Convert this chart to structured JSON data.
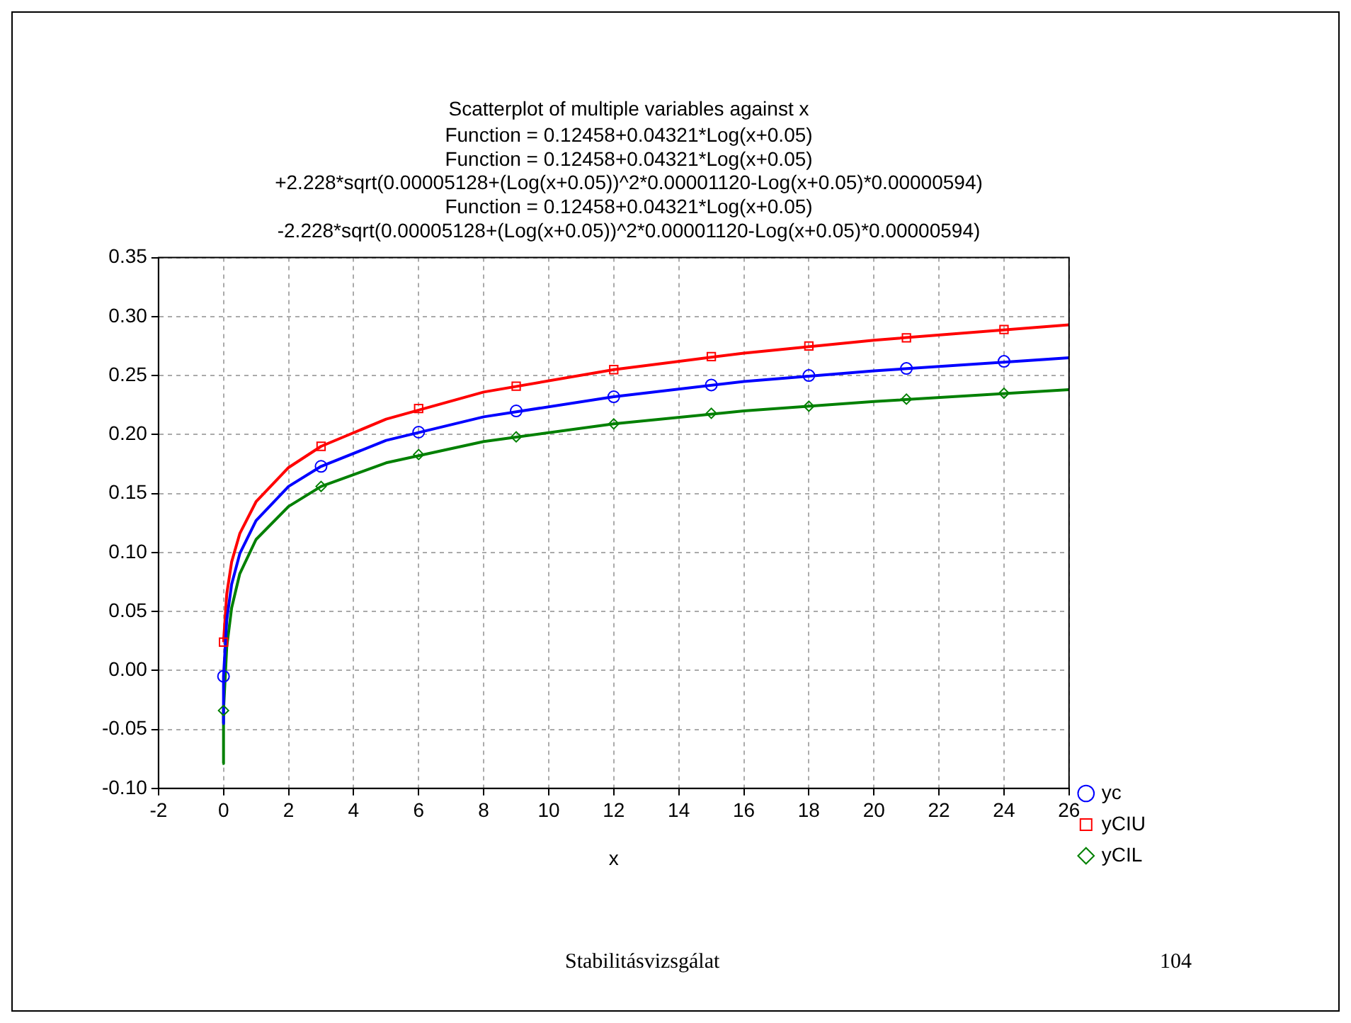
{
  "chart_data": {
    "type": "scatter",
    "title": "Scatterplot of multiple variables against x",
    "subtitle": "Function = 0.12458+0.04321*Log(x+0.05)\nFunction = 0.12458+0.04321*Log(x+0.05)\n+2.228*sqrt(0.00005128+(Log(x+0.05))^2*0.00001120-Log(x+0.05)*0.00000594)\nFunction = 0.12458+0.04321*Log(x+0.05)\n-2.228*sqrt(0.00005128+(Log(x+0.05))^2*0.00001120-Log(x+0.05)*0.00000594)",
    "xlabel": "x",
    "x": [
      0,
      3,
      6,
      9,
      12,
      15,
      18,
      21,
      24
    ],
    "series": [
      {
        "name": "yc",
        "color": "#0000ff",
        "marker": "circle",
        "values": [
          -0.005,
          0.173,
          0.202,
          0.22,
          0.232,
          0.242,
          0.25,
          0.256,
          0.262
        ]
      },
      {
        "name": "yCIU",
        "color": "#ff0000",
        "marker": "square",
        "values": [
          0.024,
          0.19,
          0.222,
          0.241,
          0.255,
          0.266,
          0.275,
          0.282,
          0.289
        ]
      },
      {
        "name": "yCIL",
        "color": "#008000",
        "marker": "diamond",
        "values": [
          -0.034,
          0.156,
          0.183,
          0.198,
          0.209,
          0.218,
          0.224,
          0.23,
          0.235
        ]
      },
      {
        "type": "line",
        "color": "#0000ff",
        "x": [
          -0.03,
          0,
          0.1,
          0.25,
          0.5,
          1,
          2,
          3,
          5,
          8,
          12,
          16,
          20,
          26
        ],
        "values": [
          -0.045,
          -0.005,
          0.043,
          0.073,
          0.099,
          0.127,
          0.156,
          0.173,
          0.195,
          0.215,
          0.232,
          0.245,
          0.254,
          0.265
        ]
      },
      {
        "type": "line",
        "color": "#ff0000",
        "x": [
          0,
          0.1,
          0.25,
          0.5,
          1,
          2,
          3,
          5,
          8,
          12,
          16,
          20,
          26
        ],
        "values": [
          0.024,
          0.065,
          0.092,
          0.116,
          0.143,
          0.172,
          0.19,
          0.213,
          0.236,
          0.255,
          0.269,
          0.28,
          0.293
        ]
      },
      {
        "type": "line",
        "color": "#008000",
        "x": [
          -0.03,
          0,
          0.1,
          0.25,
          0.5,
          1,
          2,
          3,
          5,
          8,
          12,
          16,
          20,
          26
        ],
        "values": [
          -0.079,
          -0.034,
          0.02,
          0.053,
          0.082,
          0.111,
          0.139,
          0.156,
          0.176,
          0.194,
          0.209,
          0.22,
          0.228,
          0.238
        ]
      }
    ],
    "xlim": [
      -2,
      26
    ],
    "xticks": [
      -2,
      0,
      2,
      4,
      6,
      8,
      10,
      12,
      14,
      16,
      18,
      20,
      22,
      24,
      26
    ],
    "ylim": [
      -0.1,
      0.35
    ],
    "yticks": [
      {
        "value": -0.1,
        "label": "-0.10"
      },
      {
        "value": -0.05,
        "label": "-0.05"
      },
      {
        "value": 0,
        "label": "0.00"
      },
      {
        "value": 0.05,
        "label": "0.05"
      },
      {
        "value": 0.1,
        "label": "0.10"
      },
      {
        "value": 0.15,
        "label": "0.15"
      },
      {
        "value": 0.2,
        "label": "0.20"
      },
      {
        "value": 0.25,
        "label": "0.25"
      },
      {
        "value": 0.3,
        "label": "0.30"
      },
      {
        "value": 0.35,
        "label": "0.35"
      }
    ],
    "grid": true,
    "legend": "bottom right",
    "annotations": [
      "Stabilitásvizsgálat",
      "104"
    ]
  }
}
